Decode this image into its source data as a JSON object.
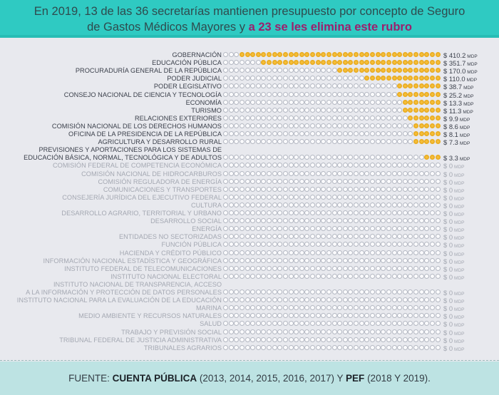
{
  "header": {
    "line1": "En 2019, 13 de las 36 secretarías mantienen presupuesto por concepto de Seguro",
    "line2_prefix": "de Gastos Médicos Mayores y ",
    "line2_highlight": "a 23 se les elimina este rubro",
    "highlight_color": "#9b1f6d",
    "bg_color": "#2fcac2"
  },
  "footer": {
    "prefix": "FUENTE: ",
    "source1": "CUENTA PÚBLICA",
    "years1": " (2013, 2014, 2015, 2016, 2017) Y ",
    "source2": "PEF",
    "years2": " (2018 Y 2019)."
  },
  "chart_data": {
    "type": "dot-bar",
    "title": "En 2019, 13 de las 36 secretarías mantienen presupuesto por concepto de Seguro de Gastos Médicos Mayores y a 23 se les elimina este rubro",
    "unit": "MDP",
    "dots_per_row": 40,
    "filled_color": "#f6c23d",
    "empty_color": "#fbfbfd",
    "rows": [
      {
        "label": "GOBERNACIÓN",
        "value": 410.2,
        "value_text": "$ 410.2",
        "filled": 37
      },
      {
        "label": "EDUCACIÓN PÚBLICA",
        "value": 351.7,
        "value_text": "$ 351.7",
        "filled": 33
      },
      {
        "label": "PROCURADURÍA GENERAL DE LA REPÚBLICA",
        "value": 170.0,
        "value_text": "$ 170.0",
        "filled": 19
      },
      {
        "label": "PODER JUDICIAL",
        "value": 110.0,
        "value_text": "$ 110.0",
        "filled": 14
      },
      {
        "label": "PODER LEGISLATIVO",
        "value": 38.7,
        "value_text": "$ 38.7",
        "filled": 8
      },
      {
        "label": "CONSEJO NACIONAL DE CIENCIA Y TECNOLOGÍA",
        "value": 25.2,
        "value_text": "$ 25.2",
        "filled": 8
      },
      {
        "label": "ECONOMÍA",
        "value": 13.3,
        "value_text": "$ 13.3",
        "filled": 7
      },
      {
        "label": "TURISMO",
        "value": 11.3,
        "value_text": "$ 11.3",
        "filled": 7
      },
      {
        "label": "RELACIONES EXTERIORES",
        "value": 9.9,
        "value_text": "$ 9.9",
        "filled": 6
      },
      {
        "label": "COMISIÓN NACIONAL DE LOS DERECHOS HUMANOS",
        "value": 8.6,
        "value_text": "$ 8.6",
        "filled": 5
      },
      {
        "label": "OFICINA DE LA PRESIDENCIA DE LA REPÚBLICA",
        "value": 8.1,
        "value_text": "$ 8.1",
        "filled": 5
      },
      {
        "label": "AGRICULTURA Y DESARROLLO RURAL",
        "value": 7.3,
        "value_text": "$ 7.3",
        "filled": 5
      },
      {
        "label": "EDUCACIÓN BÁSICA, NORMAL, TECNOLÓGICA Y DE ADULTOS",
        "label_line1": "PREVISIONES Y APORTACIONES PARA LOS SISTEMAS DE",
        "value": 3.3,
        "value_text": "$ 3.3",
        "filled": 3
      },
      {
        "label": "COMISIÓN FEDERAL DE COMPETENCIA ECONÓMICA",
        "value": 0,
        "value_text": "$ 0",
        "filled": 0
      },
      {
        "label": "COMISIÓN NACIONAL DE HIDROCARBUROS",
        "value": 0,
        "value_text": "$ 0",
        "filled": 0
      },
      {
        "label": "COMISIÓN REGULADORA DE ENERGÍA",
        "value": 0,
        "value_text": "$ 0",
        "filled": 0
      },
      {
        "label": "COMUNICACIONES Y TRANSPORTES",
        "value": 0,
        "value_text": "$ 0",
        "filled": 0
      },
      {
        "label": "CONSEJERÍA JURÍDICA DEL EJECUTIVO FEDERAL",
        "value": 0,
        "value_text": "$ 0",
        "filled": 0
      },
      {
        "label": "CULTURA",
        "value": 0,
        "value_text": "$ 0",
        "filled": 0
      },
      {
        "label": "DESARROLLO AGRARIO, TERRITORIAL Y URBANO",
        "value": 0,
        "value_text": "$ 0",
        "filled": 0
      },
      {
        "label": "DESARROLLO SOCIAL",
        "value": 0,
        "value_text": "$ 0",
        "filled": 0
      },
      {
        "label": "ENERGÍA",
        "value": 0,
        "value_text": "$ 0",
        "filled": 0
      },
      {
        "label": "ENTIDADES NO SECTORIZADAS",
        "value": 0,
        "value_text": "$ 0",
        "filled": 0
      },
      {
        "label": "FUNCIÓN PÚBLICA",
        "value": 0,
        "value_text": "$ 0",
        "filled": 0
      },
      {
        "label": "HACIENDA Y CRÉDITO PÚBLICO",
        "value": 0,
        "value_text": "$ 0",
        "filled": 0
      },
      {
        "label": "INFORMACIÓN NACIONAL ESTADÍSTICA Y GEOGRÁFICA",
        "value": 0,
        "value_text": "$ 0",
        "filled": 0
      },
      {
        "label": "INSTITUTO FEDERAL DE TELECOMUNICACIONES",
        "value": 0,
        "value_text": "$ 0",
        "filled": 0
      },
      {
        "label": "INSTITUTO NACIONAL ELECTORAL",
        "value": 0,
        "value_text": "$ 0",
        "filled": 0
      },
      {
        "label": "A LA INFORMACIÓN Y PROTECCIÓN DE DATOS PERSONALES",
        "label_line1": "INSTITUTO NACIONAL DE TRANSPARENCIA, ACCESO",
        "value": 0,
        "value_text": "$ 0",
        "filled": 0
      },
      {
        "label": "INSTITUTO NACIONAL PARA LA EVALUACIÓN DE LA EDUCACIÓN",
        "value": 0,
        "value_text": "$ 0",
        "filled": 0
      },
      {
        "label": "MARINA",
        "value": 0,
        "value_text": "$ 0",
        "filled": 0
      },
      {
        "label": "MEDIO AMBIENTE Y RECURSOS NATURALES",
        "value": 0,
        "value_text": "$ 0",
        "filled": 0
      },
      {
        "label": "SALUD",
        "value": 0,
        "value_text": "$ 0",
        "filled": 0
      },
      {
        "label": "TRABAJO Y PREVISIÓN SOCIAL",
        "value": 0,
        "value_text": "$ 0",
        "filled": 0
      },
      {
        "label": "TRIBUNAL FEDERAL DE JUSTICIA ADMINISTRATIVA",
        "value": 0,
        "value_text": "$ 0",
        "filled": 0
      },
      {
        "label": "TRIBUNALES AGRARIOS",
        "value": 0,
        "value_text": "$ 0",
        "filled": 0
      }
    ]
  }
}
